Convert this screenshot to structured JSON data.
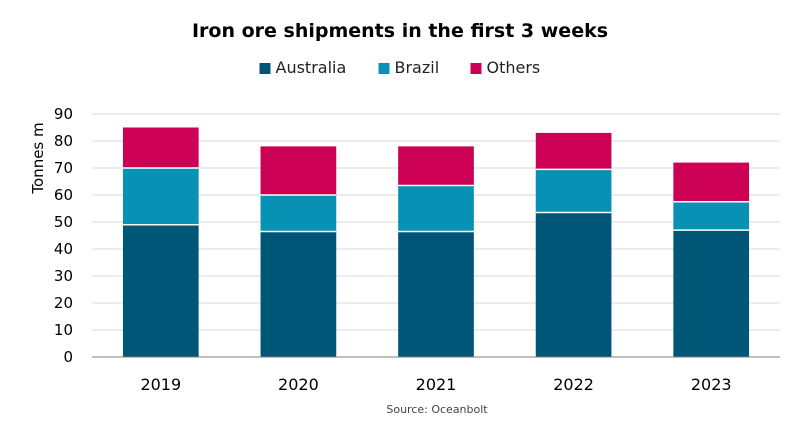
{
  "chart_data": {
    "type": "bar",
    "stacked": true,
    "title": "Iron ore shipments in the first 3 weeks",
    "xlabel": "",
    "ylabel": "Tonnes m",
    "ylim": [
      0,
      90
    ],
    "yticks": [
      0,
      10,
      20,
      30,
      40,
      50,
      60,
      70,
      80,
      90
    ],
    "grid": true,
    "legend_position": "top",
    "categories": [
      "2019",
      "2020",
      "2021",
      "2022",
      "2023"
    ],
    "series": [
      {
        "name": "Australia",
        "color": "#005677",
        "values": [
          49,
          46.5,
          46.5,
          53.5,
          47
        ]
      },
      {
        "name": "Brazil",
        "color": "#0791b4",
        "values": [
          21,
          13.5,
          17,
          16,
          10.5
        ]
      },
      {
        "name": "Others",
        "color": "#cc0055",
        "values": [
          15,
          18,
          14.5,
          13.5,
          14.5
        ]
      }
    ],
    "source": "Source: Oceanbolt"
  }
}
